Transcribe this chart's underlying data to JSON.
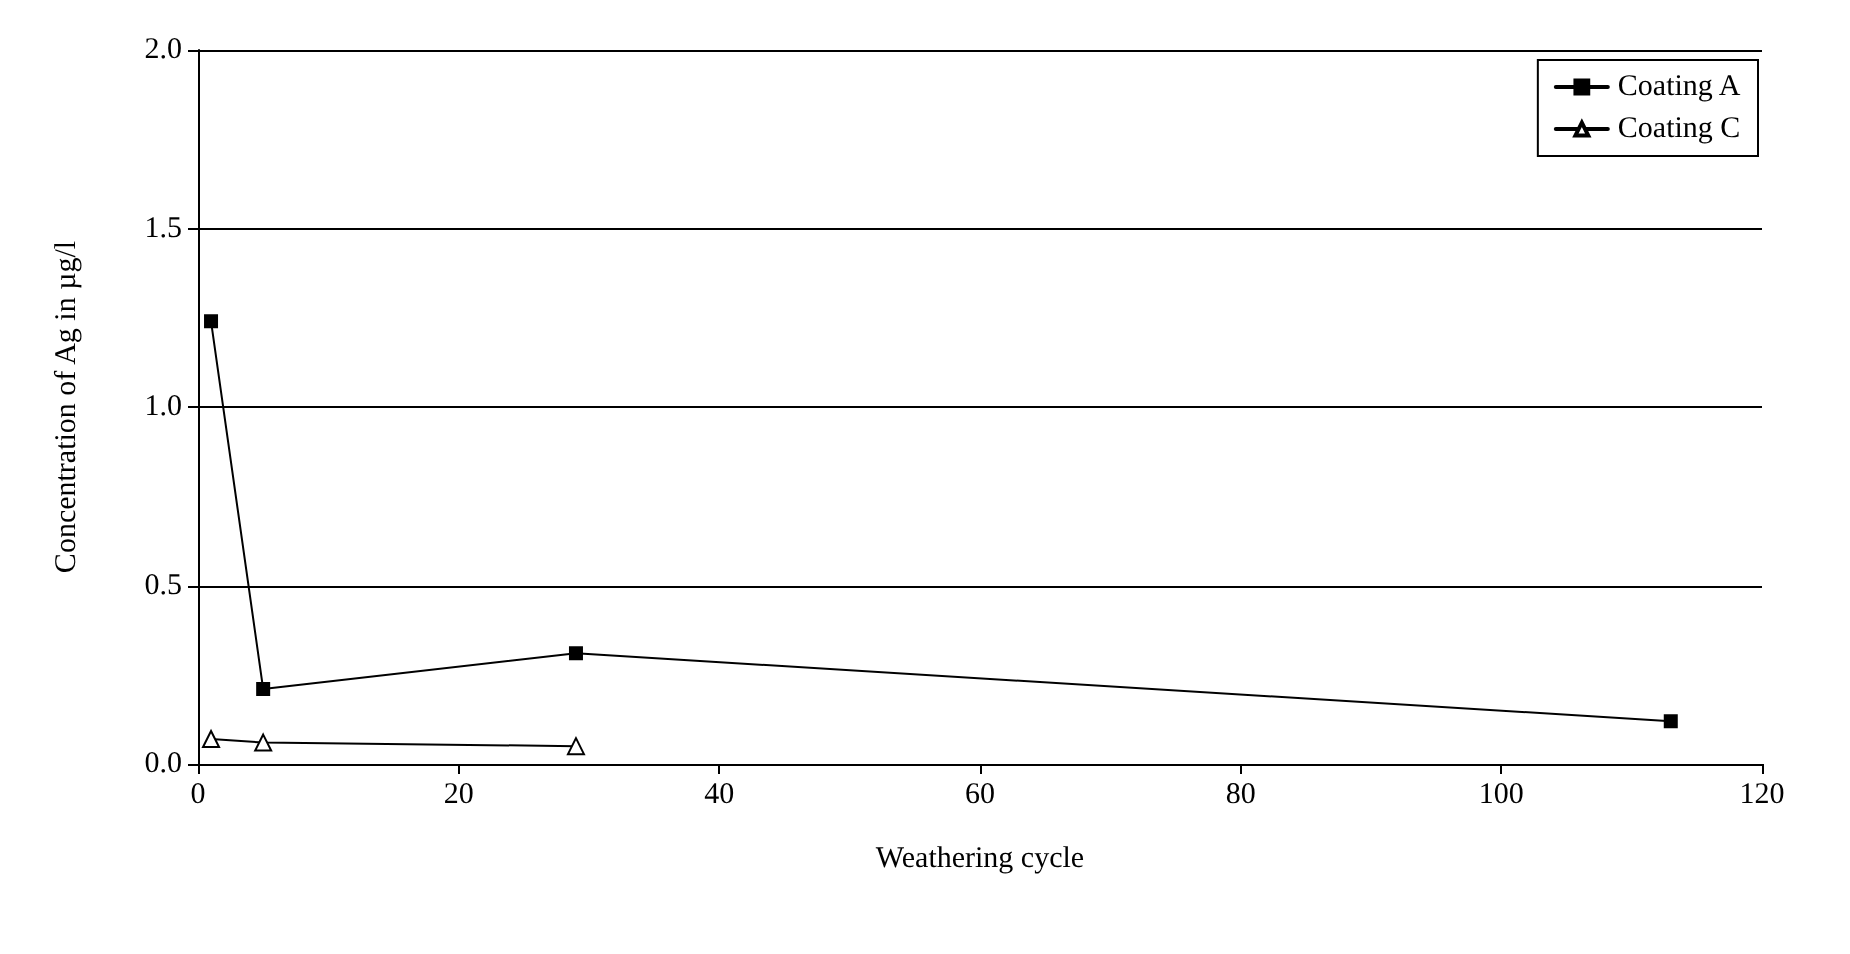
{
  "chart_data": {
    "type": "line",
    "xlabel": "Weathering cycle",
    "ylabel": "Concentration of Ag in µg/l",
    "series": [
      {
        "name": "Coating A",
        "color": "#000000",
        "marker": "square",
        "x": [
          1,
          5,
          29,
          113
        ],
        "values": [
          1.24,
          0.21,
          0.31,
          0.12
        ]
      },
      {
        "name": "Coating C",
        "color": "#000000",
        "marker": "triangle",
        "x": [
          1,
          5,
          29
        ],
        "values": [
          0.07,
          0.06,
          0.05
        ]
      }
    ],
    "xlim": [
      0,
      120
    ],
    "xticks": [
      0,
      20,
      40,
      60,
      80,
      100,
      120
    ],
    "ylim": [
      0,
      2
    ],
    "yticks": [
      {
        "value": 0,
        "label": "0.0"
      },
      0.5,
      {
        "value": 1,
        "label": "1.0"
      },
      1.5,
      {
        "value": 2,
        "label": "2.0"
      }
    ],
    "grid": "y",
    "legend": "top right",
    "line_style": "solid"
  }
}
